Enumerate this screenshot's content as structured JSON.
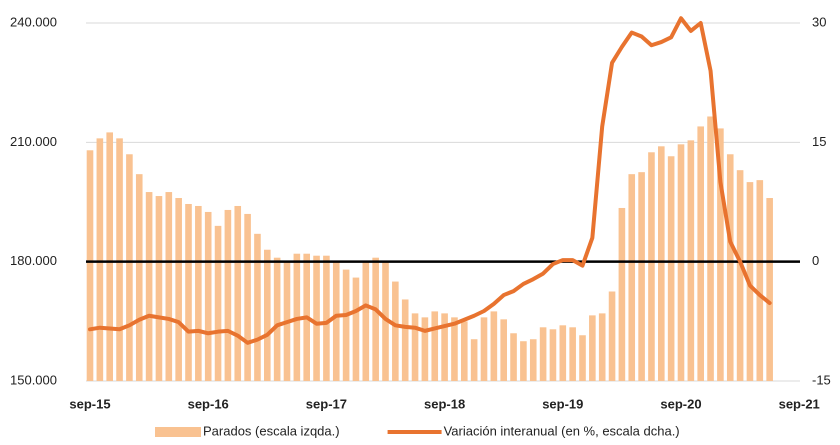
{
  "chart_data": {
    "type": "bar+line",
    "categories": [
      "sep-15",
      null,
      null,
      null,
      null,
      null,
      null,
      null,
      null,
      null,
      null,
      null,
      "sep-16",
      null,
      null,
      null,
      null,
      null,
      null,
      null,
      null,
      null,
      null,
      null,
      "sep-17",
      null,
      null,
      null,
      null,
      null,
      null,
      null,
      null,
      null,
      null,
      null,
      "sep-18",
      null,
      null,
      null,
      null,
      null,
      null,
      null,
      null,
      null,
      null,
      null,
      "sep-19",
      null,
      null,
      null,
      null,
      null,
      null,
      null,
      null,
      null,
      null,
      null,
      "sep-20",
      null,
      null,
      null,
      null,
      null,
      null,
      null,
      null,
      null,
      null,
      null,
      "sep-21"
    ],
    "series": [
      {
        "name": "Parados (escala izqda.)",
        "type": "bar",
        "color": "#f9c291",
        "axis": "y",
        "values": [
          208000,
          211000,
          212500,
          211000,
          207000,
          202000,
          197500,
          196500,
          197500,
          196000,
          194500,
          194000,
          192500,
          189000,
          193000,
          194000,
          192000,
          187000,
          183000,
          181000,
          180000,
          182000,
          182000,
          181500,
          181500,
          180000,
          178000,
          176000,
          180000,
          181000,
          180000,
          175000,
          170500,
          167000,
          166000,
          167500,
          167000,
          166000,
          165000,
          160500,
          166000,
          167500,
          165500,
          162000,
          160000,
          160500,
          163500,
          163000,
          164000,
          163500,
          161500,
          166500,
          167000,
          172500,
          193500,
          202000,
          202500,
          207500,
          209000,
          206500,
          209500,
          210500,
          214000,
          216500,
          213500,
          207000,
          203000,
          200000,
          200500,
          196000,
          null,
          null,
          null
        ]
      },
      {
        "name": "Variación interanual (en %, escala dcha.)",
        "type": "line",
        "color": "#e8732f",
        "axis": "y2",
        "values": [
          -8.5,
          -8.3,
          -8.4,
          -8.5,
          -8.0,
          -7.3,
          -6.8,
          -7.0,
          -7.2,
          -7.6,
          -8.8,
          -8.7,
          -9.0,
          -8.8,
          -8.7,
          -9.3,
          -10.2,
          -9.8,
          -9.2,
          -8.0,
          -7.6,
          -7.2,
          -7.0,
          -7.8,
          -7.7,
          -6.8,
          -6.7,
          -6.2,
          -5.5,
          -6.0,
          -7.2,
          -8.0,
          -8.2,
          -8.3,
          -8.7,
          -8.4,
          -8.1,
          -7.8,
          -7.3,
          -6.8,
          -6.2,
          -5.3,
          -4.2,
          -3.7,
          -2.8,
          -2.2,
          -1.5,
          -0.3,
          0.2,
          0.2,
          -0.5,
          3.0,
          17.0,
          25.0,
          27.0,
          28.8,
          28.3,
          27.2,
          27.6,
          28.2,
          30.6,
          29.0,
          30.0,
          24.0,
          10.0,
          2.5,
          0.0,
          -3.0,
          -4.2,
          -5.2,
          null,
          null,
          null
        ]
      }
    ],
    "ylim": [
      150000,
      240000
    ],
    "yticks": [
      {
        "value": 150000,
        "label": "150.000"
      },
      {
        "value": 180000,
        "label": "180.000"
      },
      {
        "value": 210000,
        "label": "210.000"
      },
      {
        "value": 240000,
        "label": "240.000"
      }
    ],
    "y2lim": [
      -15,
      30
    ],
    "y2ticks": [
      -15,
      0,
      15,
      30
    ],
    "hline": {
      "value": 180000,
      "color": "#000000"
    },
    "grid": true,
    "legend": "bottom"
  }
}
